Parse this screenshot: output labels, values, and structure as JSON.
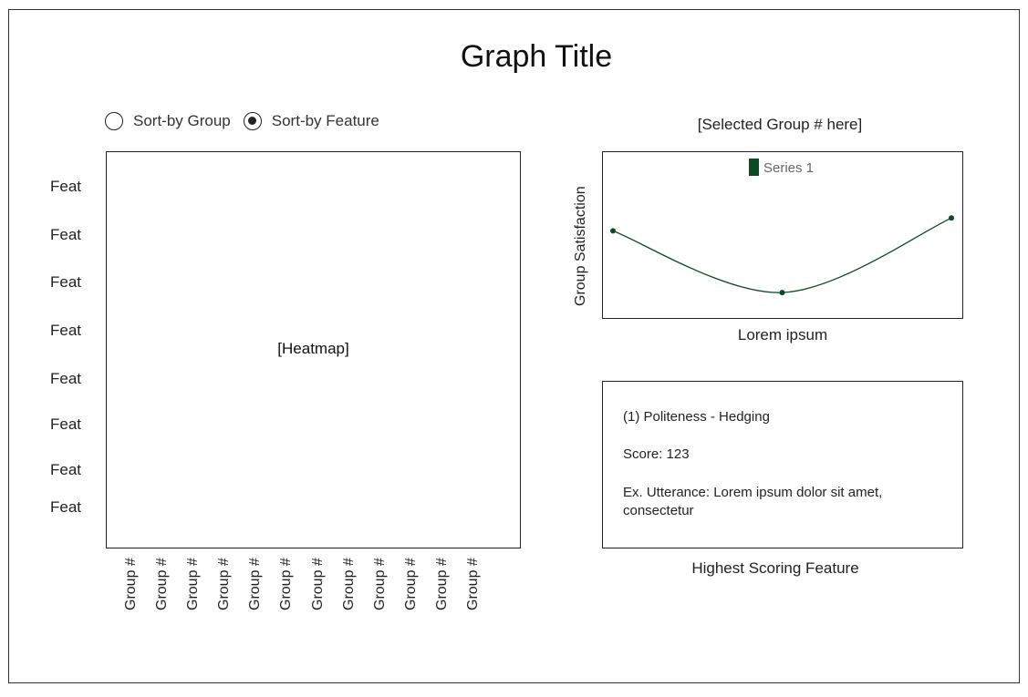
{
  "title": "Graph Title",
  "sort_options": [
    {
      "label": "Sort-by Group",
      "selected": false
    },
    {
      "label": "Sort-by Feature",
      "selected": true
    }
  ],
  "heatmap": {
    "placeholder": "[Heatmap]",
    "row_labels": [
      "Feat",
      "Feat",
      "Feat",
      "Feat",
      "Feat",
      "Feat",
      "Feat",
      "Feat"
    ],
    "column_labels": [
      "Group #",
      "Group #",
      "Group #",
      "Group #",
      "Group #",
      "Group #",
      "Group #",
      "Group #",
      "Group #",
      "Group #",
      "Group #",
      "Group #"
    ]
  },
  "selected_group": "[Selected Group # here]",
  "line_chart": {
    "ylabel": "Group Satisfaction",
    "xlabel": "Lorem ipsum",
    "legend": "Series 1",
    "series_color": "#0b4a24",
    "points": [
      {
        "x": 0,
        "y": 0.6
      },
      {
        "x": 0.5,
        "y": 0.12
      },
      {
        "x": 1,
        "y": 0.7
      }
    ]
  },
  "feature_info": {
    "title": "(1) Politeness - Hedging",
    "score": "Score: 123",
    "utterance": "Ex. Utterance: Lorem ipsum dolor sit amet, consectetur",
    "caption": "Highest Scoring Feature"
  }
}
